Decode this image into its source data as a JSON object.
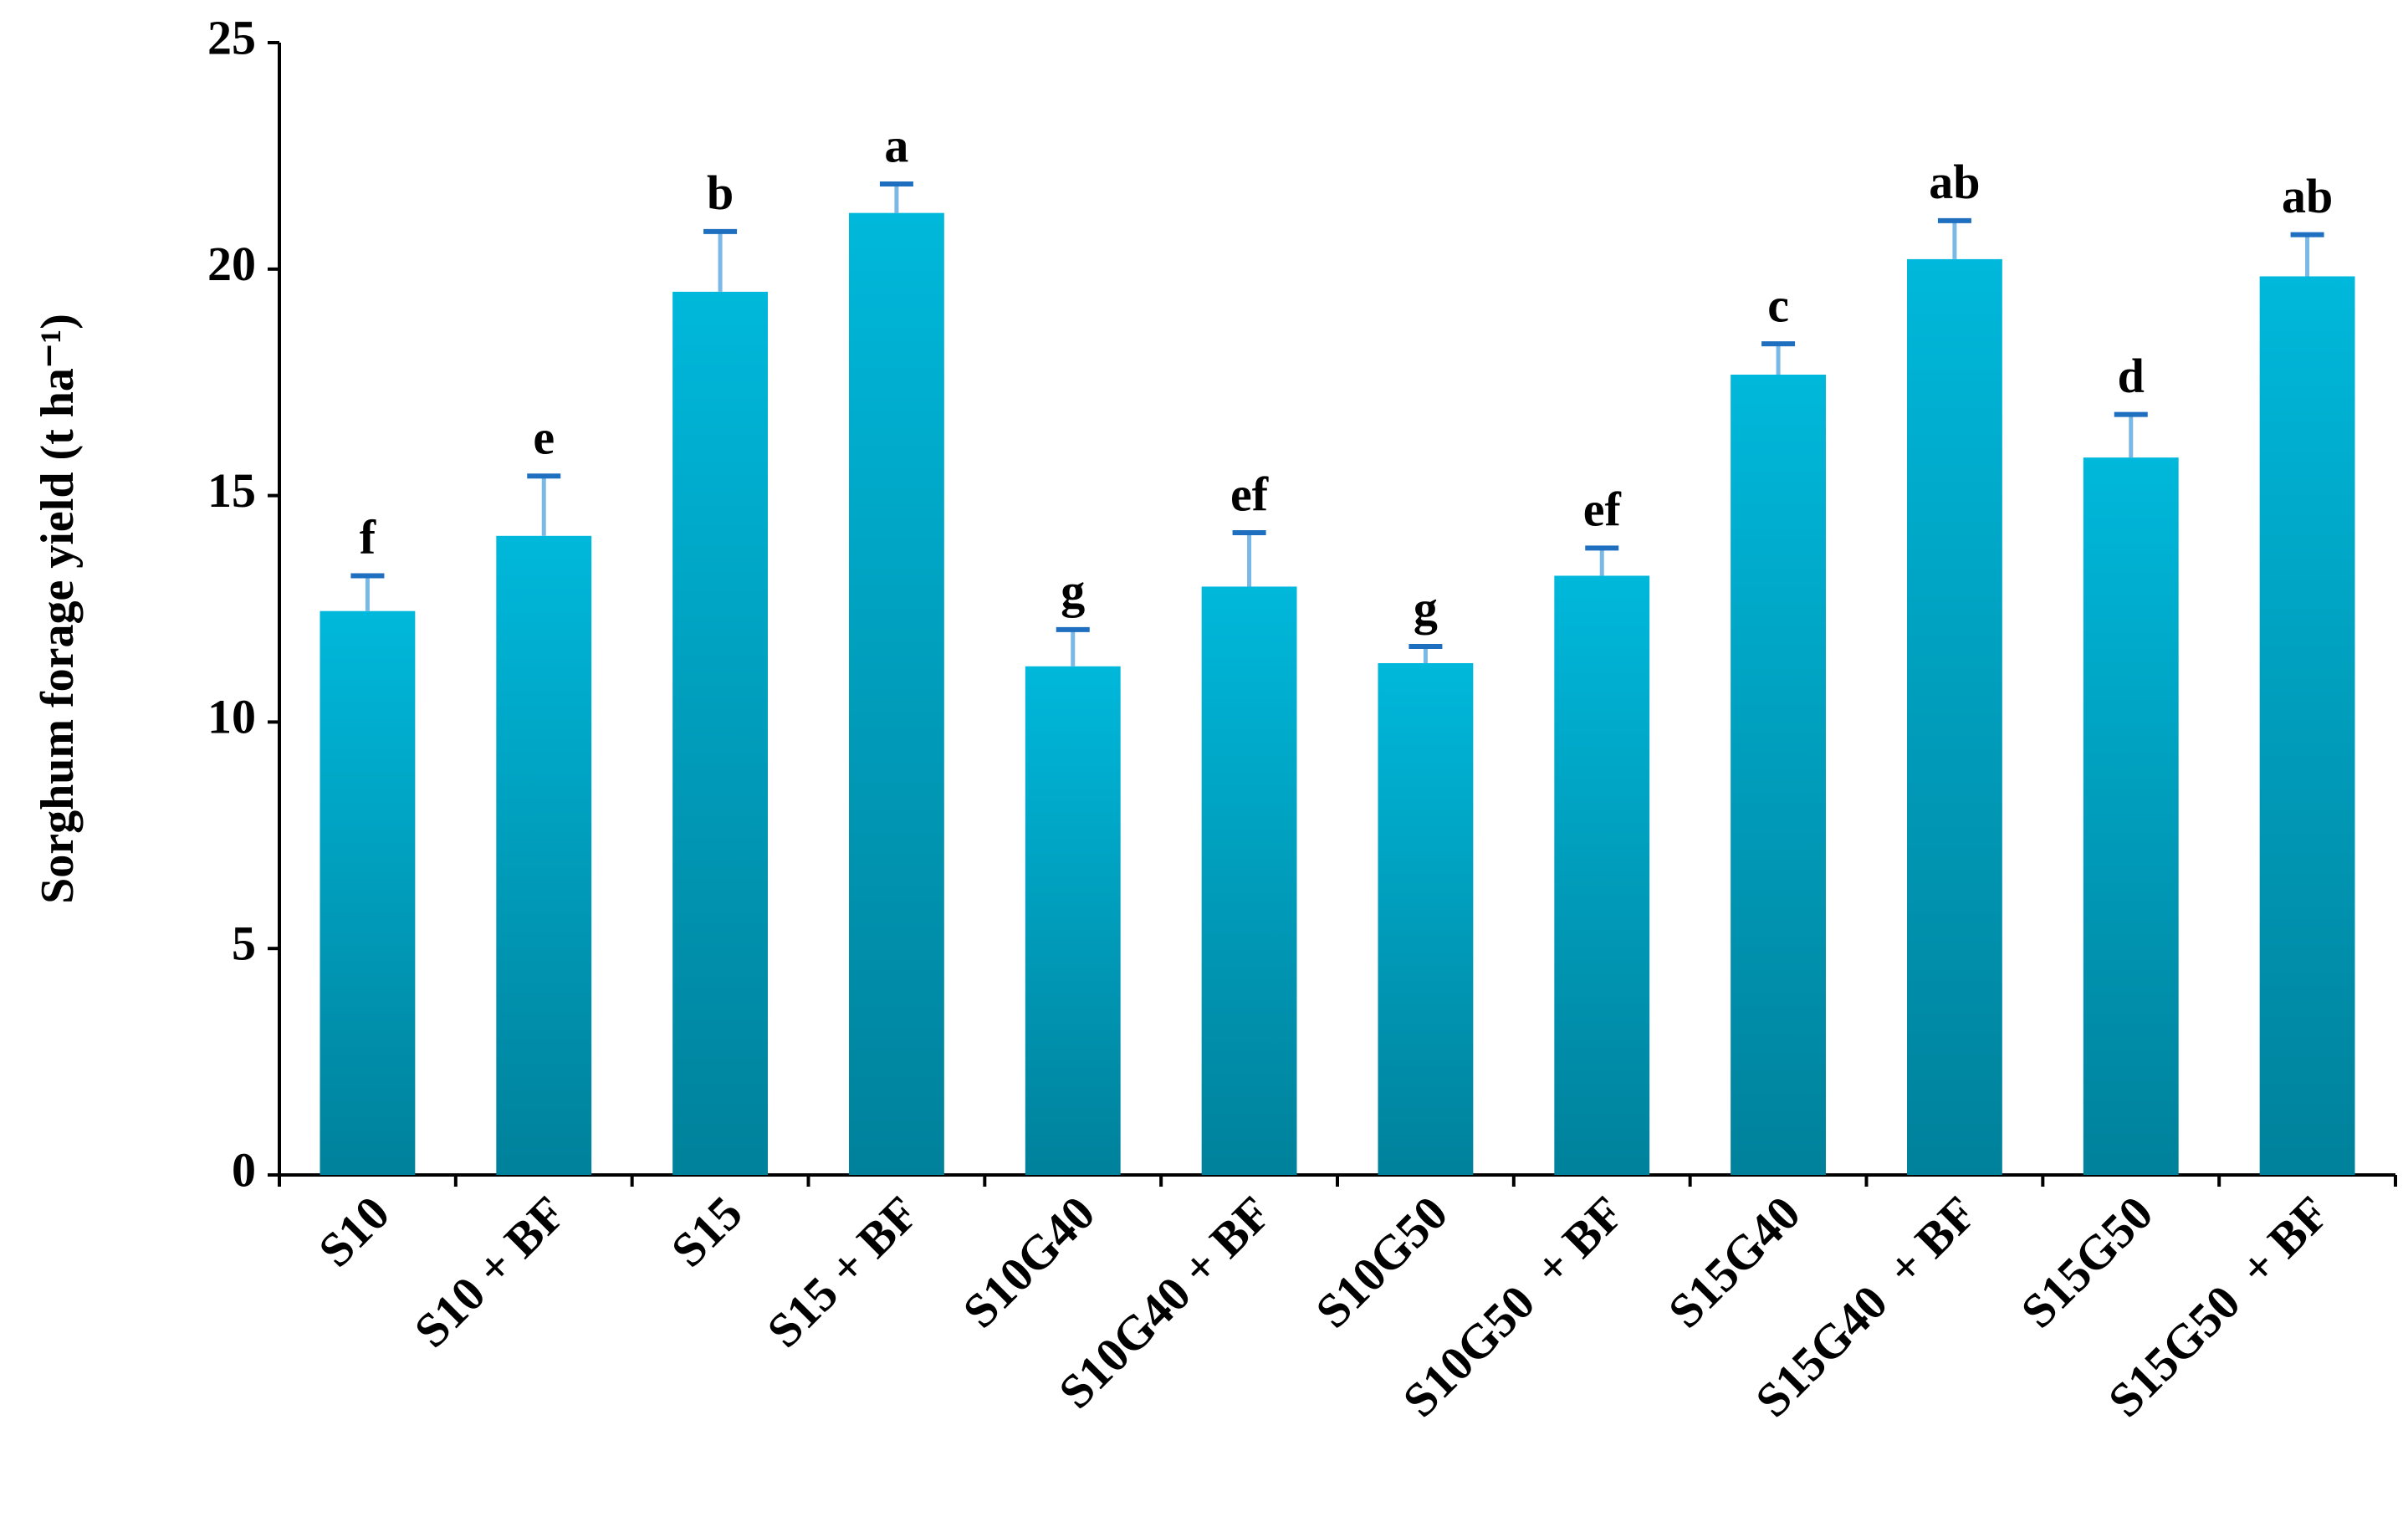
{
  "chart_data": {
    "type": "bar",
    "y_label": "Sorghum forage yield (t ha⁻¹)",
    "categories": [
      "S10",
      "S10 + BF",
      "S15",
      "S15 + BF",
      "S10G40",
      "S10G40 + BF",
      "S10G50",
      "S10G50  + BF",
      "S15G40",
      "S15G40  + BF",
      "S15G50",
      "S15G50  + BF"
    ],
    "values": [
      12.45,
      14.11,
      19.5,
      21.24,
      11.23,
      12.99,
      11.3,
      13.23,
      17.67,
      20.22,
      15.84,
      19.84
    ],
    "errors": [
      0.78,
      1.32,
      1.33,
      0.64,
      0.81,
      1.19,
      0.37,
      0.61,
      0.68,
      0.85,
      0.95,
      0.92
    ],
    "significance_letters": [
      "f",
      "e",
      "b",
      "a",
      "g",
      "ef",
      "g",
      "ef",
      "c",
      "ab",
      "d",
      "ab"
    ],
    "color": "#00b2d4",
    "ylim": [
      0,
      25
    ],
    "yticks": [
      0,
      5,
      10,
      15,
      20,
      25
    ],
    "grid": false
  }
}
